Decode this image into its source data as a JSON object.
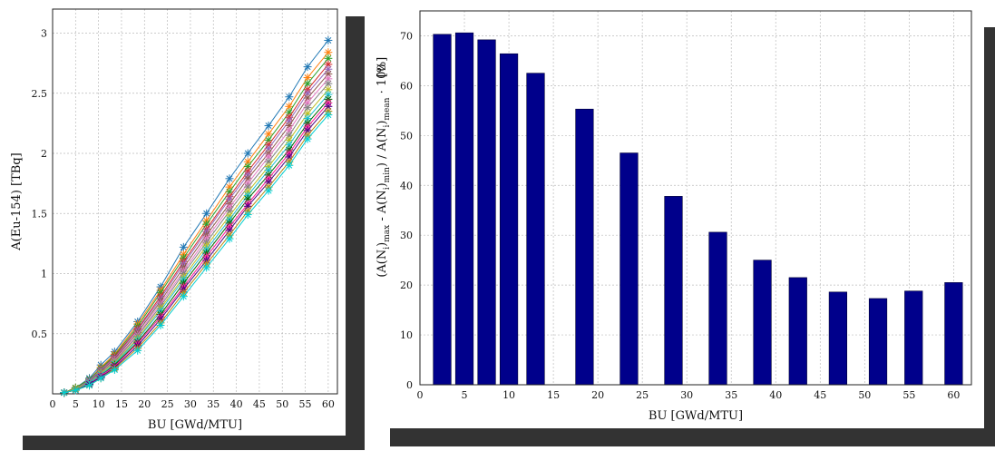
{
  "colors": {
    "bar_fill": "#00008b",
    "frame_shadow": "#333333",
    "grid": "#bbbbbb",
    "series_palette": [
      "#1f77b4",
      "#ff7f0e",
      "#2ca02c",
      "#d62728",
      "#9467bd",
      "#8c564b",
      "#e377c2",
      "#7f7f7f",
      "#bcbd22",
      "#17becf",
      "#006400",
      "#ff1493",
      "#4b0082",
      "#b8860b",
      "#00ced1",
      "#dc143c"
    ]
  },
  "chart_data": [
    {
      "type": "line",
      "marker": "asterisk",
      "xlabel": "BU [GWd/MTU]",
      "ylabel": "A(Eu-154)    [TBq]",
      "xlim": [
        0,
        62
      ],
      "ylim": [
        0,
        3.2
      ],
      "grid": true,
      "x_ticks": [
        0,
        5,
        10,
        15,
        20,
        25,
        30,
        35,
        40,
        45,
        50,
        55,
        60
      ],
      "y_ticks": [
        0.5,
        1,
        1.5,
        2,
        2.5,
        3
      ],
      "x_tick_labels": [
        "0",
        "5",
        "10",
        "15",
        "20",
        "25",
        "30",
        "35",
        "40",
        "45",
        "50",
        "55",
        "60"
      ],
      "y_tick_labels": [
        "0.5",
        "1",
        "1.5",
        "2",
        "2.5",
        "3"
      ],
      "x": [
        2.5,
        5,
        8,
        10.5,
        13.5,
        18.5,
        23.5,
        28.5,
        33.5,
        38.5,
        42.5,
        47,
        51.5,
        55.5,
        60
      ],
      "series": [
        {
          "values": [
            0.01,
            0.05,
            0.13,
            0.24,
            0.35,
            0.6,
            0.89,
            1.22,
            1.5,
            1.79,
            2.0,
            2.23,
            2.47,
            2.72,
            2.94
          ]
        },
        {
          "values": [
            0.01,
            0.05,
            0.12,
            0.22,
            0.33,
            0.58,
            0.86,
            1.16,
            1.44,
            1.72,
            1.93,
            2.16,
            2.39,
            2.63,
            2.84
          ]
        },
        {
          "values": [
            0.01,
            0.05,
            0.12,
            0.21,
            0.32,
            0.56,
            0.84,
            1.13,
            1.41,
            1.68,
            1.89,
            2.11,
            2.34,
            2.58,
            2.79
          ]
        },
        {
          "values": [
            0.01,
            0.04,
            0.11,
            0.2,
            0.31,
            0.54,
            0.81,
            1.1,
            1.37,
            1.64,
            1.85,
            2.07,
            2.3,
            2.53,
            2.74
          ]
        },
        {
          "values": [
            0.01,
            0.04,
            0.11,
            0.2,
            0.3,
            0.53,
            0.79,
            1.08,
            1.35,
            1.62,
            1.82,
            2.04,
            2.27,
            2.5,
            2.7
          ]
        },
        {
          "values": [
            0.01,
            0.04,
            0.1,
            0.19,
            0.29,
            0.51,
            0.77,
            1.05,
            1.32,
            1.58,
            1.79,
            2.0,
            2.23,
            2.46,
            2.66
          ]
        },
        {
          "values": [
            0.01,
            0.04,
            0.1,
            0.18,
            0.28,
            0.49,
            0.75,
            1.02,
            1.29,
            1.55,
            1.75,
            1.97,
            2.19,
            2.42,
            2.62
          ]
        },
        {
          "values": [
            0.01,
            0.04,
            0.1,
            0.18,
            0.27,
            0.48,
            0.73,
            1.0,
            1.26,
            1.52,
            1.72,
            1.93,
            2.15,
            2.38,
            2.58
          ]
        },
        {
          "values": [
            0.01,
            0.04,
            0.09,
            0.17,
            0.26,
            0.46,
            0.71,
            0.97,
            1.23,
            1.48,
            1.68,
            1.89,
            2.11,
            2.33,
            2.53
          ]
        },
        {
          "values": [
            0.01,
            0.03,
            0.09,
            0.16,
            0.25,
            0.45,
            0.69,
            0.95,
            1.2,
            1.45,
            1.65,
            1.86,
            2.07,
            2.29,
            2.49
          ]
        },
        {
          "values": [
            0.01,
            0.03,
            0.08,
            0.15,
            0.24,
            0.43,
            0.66,
            0.92,
            1.17,
            1.42,
            1.62,
            1.82,
            2.03,
            2.25,
            2.45
          ]
        },
        {
          "values": [
            0.01,
            0.03,
            0.08,
            0.15,
            0.23,
            0.42,
            0.64,
            0.89,
            1.14,
            1.39,
            1.58,
            1.79,
            2.0,
            2.22,
            2.42
          ]
        },
        {
          "values": [
            0.01,
            0.03,
            0.08,
            0.14,
            0.22,
            0.4,
            0.62,
            0.87,
            1.11,
            1.36,
            1.56,
            1.76,
            1.97,
            2.19,
            2.39
          ]
        },
        {
          "values": [
            0.01,
            0.03,
            0.07,
            0.13,
            0.21,
            0.38,
            0.59,
            0.84,
            1.08,
            1.32,
            1.52,
            1.72,
            1.93,
            2.15,
            2.35
          ]
        },
        {
          "values": [
            0.01,
            0.03,
            0.07,
            0.13,
            0.2,
            0.36,
            0.57,
            0.81,
            1.05,
            1.29,
            1.49,
            1.69,
            1.9,
            2.12,
            2.32
          ]
        }
      ]
    },
    {
      "type": "bar",
      "xlabel": "BU [GWd/MTU]",
      "ylabel_main": "(A(N",
      "ylabel_parts": [
        "(A(N",
        "i",
        ")",
        "max",
        " - A(N",
        "i",
        ")",
        "min",
        ") / A(N",
        "i",
        ")",
        "mean",
        " · 100"
      ],
      "ylabel_unit": "[%]",
      "xlim": [
        0,
        62
      ],
      "ylim": [
        0,
        75
      ],
      "grid": true,
      "x_ticks": [
        0,
        5,
        10,
        15,
        20,
        25,
        30,
        35,
        40,
        45,
        50,
        55,
        60
      ],
      "y_ticks": [
        0,
        10,
        20,
        30,
        40,
        50,
        60,
        70
      ],
      "x_tick_labels": [
        "0",
        "5",
        "10",
        "15",
        "20",
        "25",
        "30",
        "35",
        "40",
        "45",
        "50",
        "55",
        "60"
      ],
      "y_tick_labels": [
        "0",
        "10",
        "20",
        "30",
        "40",
        "50",
        "60",
        "70"
      ],
      "x": [
        2.5,
        5,
        7.5,
        10,
        13,
        18.5,
        23.5,
        28.5,
        33.5,
        38.5,
        42.5,
        47,
        51.5,
        55.5,
        60
      ],
      "values": [
        70.3,
        70.6,
        69.2,
        66.4,
        62.5,
        55.3,
        46.5,
        37.8,
        30.6,
        25.0,
        21.5,
        18.6,
        17.3,
        18.8,
        20.5
      ]
    }
  ]
}
